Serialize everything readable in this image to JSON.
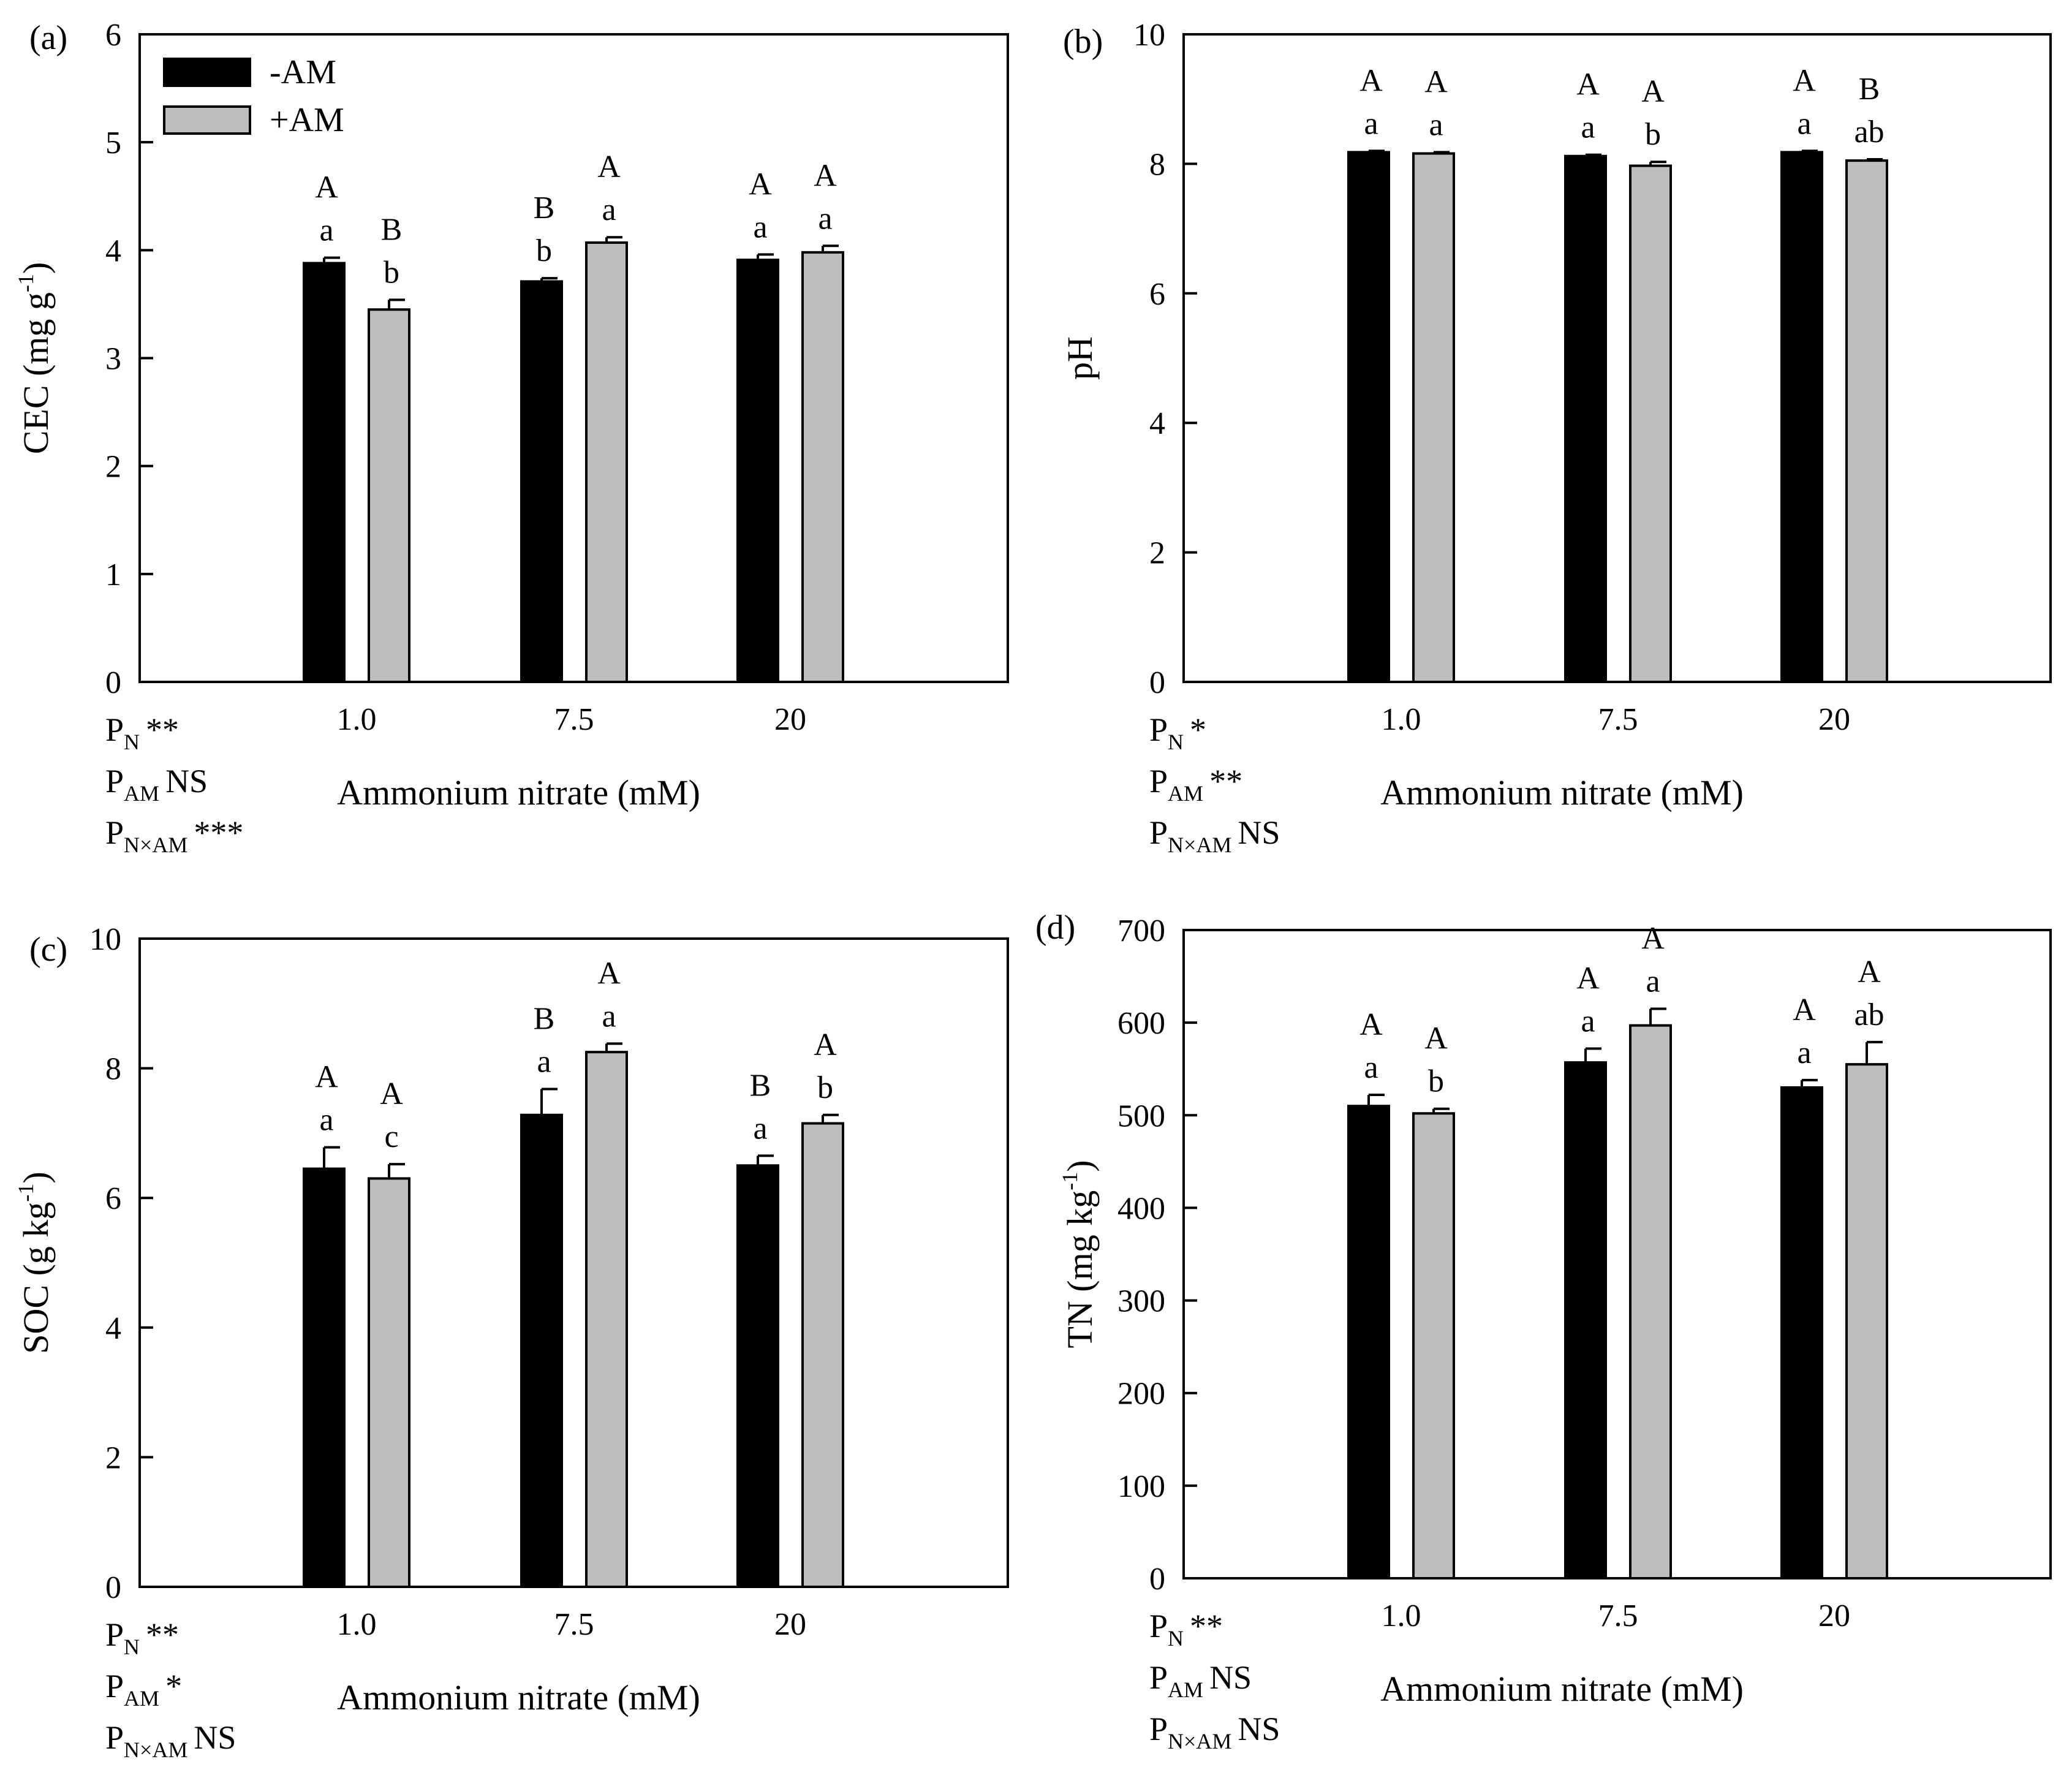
{
  "legend": {
    "entries": [
      {
        "label": "-AM",
        "color": "#000000"
      },
      {
        "label": "+AM",
        "color": "#bdbdbd"
      }
    ]
  },
  "colors": {
    "minus_am": "#000000",
    "plus_am": "#bdbdbd",
    "axis": "#000000"
  },
  "chart_data": [
    {
      "type": "bar",
      "panel_label": "(a)",
      "xlabel": "Ammonium nitrate (mM)",
      "ylabel": "CEC (mg g-1)",
      "ylabel_main": "CEC (mg g",
      "ylabel_sup": "-1",
      "ylabel_tail": ")",
      "categories": [
        "1.0",
        "7.5",
        "20"
      ],
      "ylim": [
        0,
        6
      ],
      "yticks": [
        "0",
        "1",
        "2",
        "3",
        "4",
        "5",
        "6"
      ],
      "legend_location": "top-left",
      "series": [
        {
          "name": "-AM",
          "values": [
            3.88,
            3.71,
            3.91
          ],
          "errors": [
            0.05,
            0.03,
            0.05
          ],
          "upper": [
            "A",
            "B",
            "A"
          ],
          "lower": [
            "a",
            "b",
            "a"
          ]
        },
        {
          "name": "+AM",
          "values": [
            3.45,
            4.07,
            3.98
          ],
          "errors": [
            0.09,
            0.05,
            0.06
          ],
          "upper": [
            "B",
            "A",
            "A"
          ],
          "lower": [
            "b",
            "a",
            "a"
          ]
        }
      ],
      "stats": [
        {
          "label": "P",
          "sub": "N",
          "value": "**"
        },
        {
          "label": "P",
          "sub": "AM",
          "value": "NS"
        },
        {
          "label": "P",
          "sub": "N×AM",
          "value": "***"
        }
      ]
    },
    {
      "type": "bar",
      "panel_label": "(b)",
      "xlabel": "Ammonium nitrate (mM)",
      "ylabel": "pH",
      "ylabel_main": "pH",
      "ylabel_sup": "",
      "ylabel_tail": "",
      "categories": [
        "1.0",
        "7.5",
        "20"
      ],
      "ylim": [
        0,
        10
      ],
      "yticks": [
        "0",
        "2",
        "4",
        "6",
        "8",
        "10"
      ],
      "series": [
        {
          "name": "-AM",
          "values": [
            8.18,
            8.12,
            8.18
          ],
          "errors": [
            0.02,
            0.02,
            0.02
          ],
          "upper": [
            "A",
            "A",
            "A"
          ],
          "lower": [
            "a",
            "a",
            "a"
          ]
        },
        {
          "name": "+AM",
          "values": [
            8.16,
            7.97,
            8.05
          ],
          "errors": [
            0.02,
            0.06,
            0.02
          ],
          "upper": [
            "A",
            "A",
            "B"
          ],
          "lower": [
            "a",
            "b",
            "ab"
          ]
        }
      ],
      "stats": [
        {
          "label": "P",
          "sub": "N",
          "value": "*"
        },
        {
          "label": "P",
          "sub": "AM",
          "value": "**"
        },
        {
          "label": "P",
          "sub": "N×AM",
          "value": "NS"
        }
      ]
    },
    {
      "type": "bar",
      "panel_label": "(c)",
      "xlabel": "Ammonium nitrate (mM)",
      "ylabel": "SOC (g kg-1)",
      "ylabel_main": "SOC  (g kg",
      "ylabel_sup": "-1",
      "ylabel_tail": ")",
      "categories": [
        "1.0",
        "7.5",
        "20"
      ],
      "ylim": [
        0,
        10
      ],
      "yticks": [
        "0",
        "2",
        "4",
        "6",
        "8",
        "10"
      ],
      "series": [
        {
          "name": "-AM",
          "values": [
            6.45,
            7.28,
            6.5
          ],
          "errors": [
            0.33,
            0.4,
            0.15
          ],
          "upper": [
            "A",
            "B",
            "B"
          ],
          "lower": [
            "a",
            "a",
            "a"
          ]
        },
        {
          "name": "+AM",
          "values": [
            6.3,
            8.25,
            7.15
          ],
          "errors": [
            0.22,
            0.13,
            0.13
          ],
          "upper": [
            "A",
            "A",
            "A"
          ],
          "lower": [
            "c",
            "a",
            "b"
          ]
        }
      ],
      "stats": [
        {
          "label": "P",
          "sub": "N",
          "value": "**"
        },
        {
          "label": "P",
          "sub": "AM",
          "value": "*"
        },
        {
          "label": "P",
          "sub": "N×AM",
          "value": "NS"
        }
      ]
    },
    {
      "type": "bar",
      "panel_label": "(d)",
      "xlabel": "Ammonium nitrate (mM)",
      "ylabel": "TN (mg kg-1)",
      "ylabel_main": "TN (mg kg",
      "ylabel_sup": "-1",
      "ylabel_tail": ")",
      "categories": [
        "1.0",
        "7.5",
        "20"
      ],
      "ylim": [
        0,
        700
      ],
      "yticks": [
        "0",
        "100",
        "200",
        "300",
        "400",
        "500",
        "600",
        "700"
      ],
      "series": [
        {
          "name": "-AM",
          "values": [
            510,
            557,
            530
          ],
          "errors": [
            12,
            15,
            8
          ],
          "upper": [
            "A",
            "A",
            "A"
          ],
          "lower": [
            "a",
            "a",
            "a"
          ]
        },
        {
          "name": "+AM",
          "values": [
            502,
            597,
            555
          ],
          "errors": [
            5,
            18,
            24
          ],
          "upper": [
            "A",
            "A",
            "A"
          ],
          "lower": [
            "b",
            "a",
            "ab"
          ]
        }
      ],
      "stats": [
        {
          "label": "P",
          "sub": "N",
          "value": "**"
        },
        {
          "label": "P",
          "sub": "AM",
          "value": "NS"
        },
        {
          "label": "P",
          "sub": "N×AM",
          "value": "NS"
        }
      ]
    }
  ]
}
